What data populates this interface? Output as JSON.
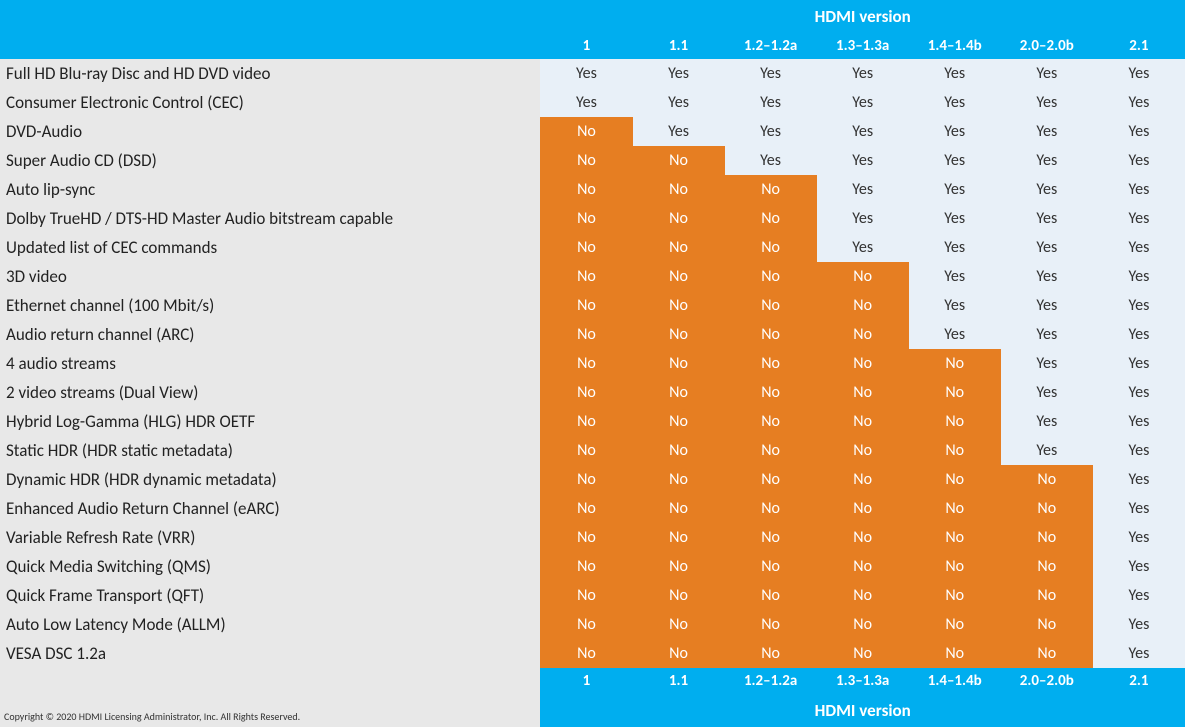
{
  "header_title": "HDMI version",
  "footer_title": "HDMI version",
  "copyright": "Copyright © 2020 HDMI Licensing Administrator, Inc.  All Rights Reserved.",
  "versions": [
    "1",
    "1.1",
    "1.2–1.2a",
    "1.3–1.3a",
    "1.4–1.4b",
    "2.0–2.0b",
    "2.1"
  ],
  "yes_label": "Yes",
  "no_label": "No",
  "colors": {
    "header_bg": "#00aeef",
    "header_fg": "#ffffff",
    "feature_bg": "#e8e8e8",
    "yes_bg": "#e8f0f8",
    "no_bg": "#e67e22",
    "no_fg": "#ffffff"
  },
  "rows": [
    {
      "feature": "Full HD Blu-ray Disc and HD DVD video",
      "cells": [
        "Yes",
        "Yes",
        "Yes",
        "Yes",
        "Yes",
        "Yes",
        "Yes"
      ]
    },
    {
      "feature": "Consumer Electronic Control (CEC)",
      "cells": [
        "Yes",
        "Yes",
        "Yes",
        "Yes",
        "Yes",
        "Yes",
        "Yes"
      ]
    },
    {
      "feature": "DVD-Audio",
      "cells": [
        "No",
        "Yes",
        "Yes",
        "Yes",
        "Yes",
        "Yes",
        "Yes"
      ]
    },
    {
      "feature": "Super Audio CD (DSD)",
      "cells": [
        "No",
        "No",
        "Yes",
        "Yes",
        "Yes",
        "Yes",
        "Yes"
      ]
    },
    {
      "feature": "Auto lip-sync",
      "cells": [
        "No",
        "No",
        "No",
        "Yes",
        "Yes",
        "Yes",
        "Yes"
      ]
    },
    {
      "feature": "Dolby TrueHD / DTS-HD Master Audio bitstream capable",
      "cells": [
        "No",
        "No",
        "No",
        "Yes",
        "Yes",
        "Yes",
        "Yes"
      ]
    },
    {
      "feature": "Updated list of CEC commands",
      "cells": [
        "No",
        "No",
        "No",
        "Yes",
        "Yes",
        "Yes",
        "Yes"
      ]
    },
    {
      "feature": "3D video",
      "cells": [
        "No",
        "No",
        "No",
        "No",
        "Yes",
        "Yes",
        "Yes"
      ]
    },
    {
      "feature": "Ethernet channel (100 Mbit/s)",
      "cells": [
        "No",
        "No",
        "No",
        "No",
        "Yes",
        "Yes",
        "Yes"
      ]
    },
    {
      "feature": "Audio return channel (ARC)",
      "cells": [
        "No",
        "No",
        "No",
        "No",
        "Yes",
        "Yes",
        "Yes"
      ]
    },
    {
      "feature": "4 audio streams",
      "cells": [
        "No",
        "No",
        "No",
        "No",
        "No",
        "Yes",
        "Yes"
      ]
    },
    {
      "feature": "2 video streams (Dual View)",
      "cells": [
        "No",
        "No",
        "No",
        "No",
        "No",
        "Yes",
        "Yes"
      ]
    },
    {
      "feature": "Hybrid Log-Gamma (HLG) HDR OETF",
      "cells": [
        "No",
        "No",
        "No",
        "No",
        "No",
        "Yes",
        "Yes"
      ]
    },
    {
      "feature": "Static HDR (HDR static metadata)",
      "cells": [
        "No",
        "No",
        "No",
        "No",
        "No",
        "Yes",
        "Yes"
      ]
    },
    {
      "feature": "Dynamic HDR (HDR dynamic metadata)",
      "cells": [
        "No",
        "No",
        "No",
        "No",
        "No",
        "No",
        "Yes"
      ]
    },
    {
      "feature": "Enhanced Audio Return Channel (eARC)",
      "cells": [
        "No",
        "No",
        "No",
        "No",
        "No",
        "No",
        "Yes"
      ]
    },
    {
      "feature": "Variable Refresh Rate (VRR)",
      "cells": [
        "No",
        "No",
        "No",
        "No",
        "No",
        "No",
        "Yes"
      ]
    },
    {
      "feature": "Quick Media Switching (QMS)",
      "cells": [
        "No",
        "No",
        "No",
        "No",
        "No",
        "No",
        "Yes"
      ]
    },
    {
      "feature": "Quick Frame Transport (QFT)",
      "cells": [
        "No",
        "No",
        "No",
        "No",
        "No",
        "No",
        "Yes"
      ]
    },
    {
      "feature": "Auto Low Latency Mode (ALLM)",
      "cells": [
        "No",
        "No",
        "No",
        "No",
        "No",
        "No",
        "Yes"
      ]
    },
    {
      "feature": "VESA DSC 1.2a",
      "cells": [
        "No",
        "No",
        "No",
        "No",
        "No",
        "No",
        "Yes"
      ]
    }
  ]
}
